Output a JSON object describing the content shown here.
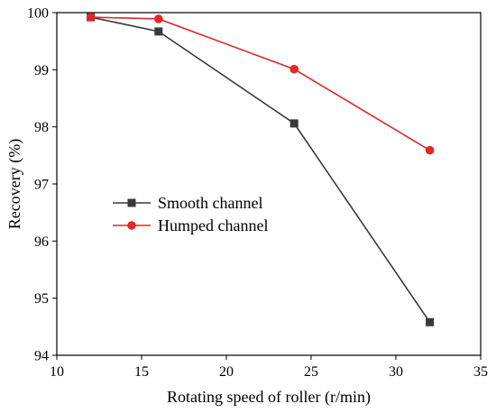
{
  "chart_data": {
    "type": "line",
    "title": "",
    "xlabel": "Rotating speed of roller (r/min)",
    "ylabel": "Recovery (%)",
    "xlim": [
      10,
      35
    ],
    "ylim": [
      94,
      100
    ],
    "xticks": [
      10,
      15,
      20,
      25,
      30,
      35
    ],
    "yticks": [
      94,
      95,
      96,
      97,
      98,
      99,
      100
    ],
    "grid": false,
    "legend_position": "center-left",
    "series": [
      {
        "name": "Smooth channel",
        "marker": "square",
        "color": "#3a3a3a",
        "x": [
          12,
          16,
          24,
          32
        ],
        "values": [
          99.92,
          99.67,
          98.06,
          94.58
        ]
      },
      {
        "name": "Humped channel",
        "marker": "circle",
        "color": "#e32626",
        "x": [
          12,
          16,
          24,
          32
        ],
        "values": [
          99.92,
          99.89,
          99.01,
          97.59
        ]
      }
    ]
  }
}
